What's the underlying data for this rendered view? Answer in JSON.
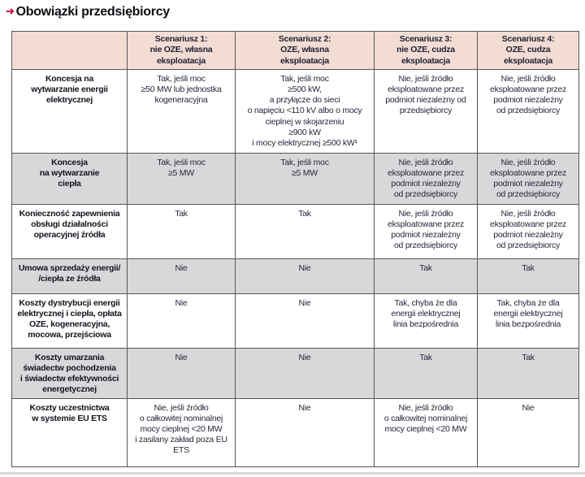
{
  "page": {
    "title": "Obowiązki przedsiębiorcy",
    "bullet_icon": "➜",
    "accent_color": "#c9234a",
    "header_bg": "#f2dcd4",
    "alt_row_bg": "#d8d8da",
    "border_color": "#57575a"
  },
  "table": {
    "header": [
      "",
      "Scenariusz 1:\nnie OZE, własna\neksploatacja",
      "Scenariusz 2:\nOZE, własna\neksploatacja",
      "Scenariusz 3:\nnie OZE, cudza\neksploatacja",
      "Scenariusz 4:\nOZE, cudza\neksploatacja"
    ],
    "rows": [
      {
        "label": "Koncesja na\nwytwarzanie energii\nelektrycznej",
        "cells": [
          "Tak, jeśli moc\n≥50 MW lub jednostka\nkogeneracyjna",
          "Tak, jeśli moc\n≥500 kW,\na przyłącze do sieci\no napięciu <110 kV albo o mocy\ncieplnej w skojarzeniu\n≥900 kW\ni mocy elektrycznej ≥500 kW¹",
          "Nie, jeśli źródło\neksploatowane przez\npodmiot niezależny od\nprzedsiębiorcy",
          "Nie, jeśli źródło\neksploatowane przez\npodmiot niezależny\nod przedsiębiorcy"
        ]
      },
      {
        "label": "Koncesja\nna wytwarzanie\nciepła",
        "cells": [
          "Tak, jeśli moc\n≥5 MW",
          "Tak, jeśli moc\n≥5 MW",
          "Nie, jeśli źródło\neksploatowane przez\npodmiot niezależny\nod przedsiębiorcy",
          "Nie, jeśli źródło\neksploatowane przez\npodmiot niezależny\nod przedsiębiorcy"
        ]
      },
      {
        "label": "Konieczność zapewnienia\nobsługi działalności\noperacyjnej źródła",
        "cells": [
          "Tak",
          "Tak",
          "Nie, jeśli źródło\neksploatowane przez\npodmiot niezależny\nod przedsiębiorcy",
          "Nie, jeśli źródło\neksploatowane przez\npodmiot niezależny\nod przedsiębiorcy"
        ]
      },
      {
        "label": "Umowa sprzedaży energii/\n/ciepła ze źródła",
        "cells": [
          "Nie",
          "Nie",
          "Tak",
          "Tak"
        ]
      },
      {
        "label": "Koszty dystrybucji energii\nelektrycznej i ciepła, opłata\nOZE, kogeneracyjna,\nmocowa, przejściowa",
        "cells": [
          "Nie",
          "Nie",
          "Tak, chyba że dla\nenergii elektrycznej\nlinia bezpośrednia",
          "Tak, chyba że dla\nenergii elektrycznej\nlinia bezpośrednia"
        ]
      },
      {
        "label": "Koszty umarzania\nświadectw pochodzenia\ni świadectw efektywności\nenergetycznej",
        "cells": [
          "Nie",
          "Nie",
          "Tak",
          "Tak"
        ]
      },
      {
        "label": "Koszty uczestnictwa\nw systemie EU ETS",
        "cells": [
          "Nie, jeśli źródło\no całkowitej nominalnej\nmocy cieplnej <20 MW\ni zasilany zakład poza EU\nETS",
          "Nie",
          "Nie, jeśli źródło\no całkowitej nominalnej\nmocy cieplnej <20 MW",
          "Nie"
        ]
      }
    ]
  }
}
